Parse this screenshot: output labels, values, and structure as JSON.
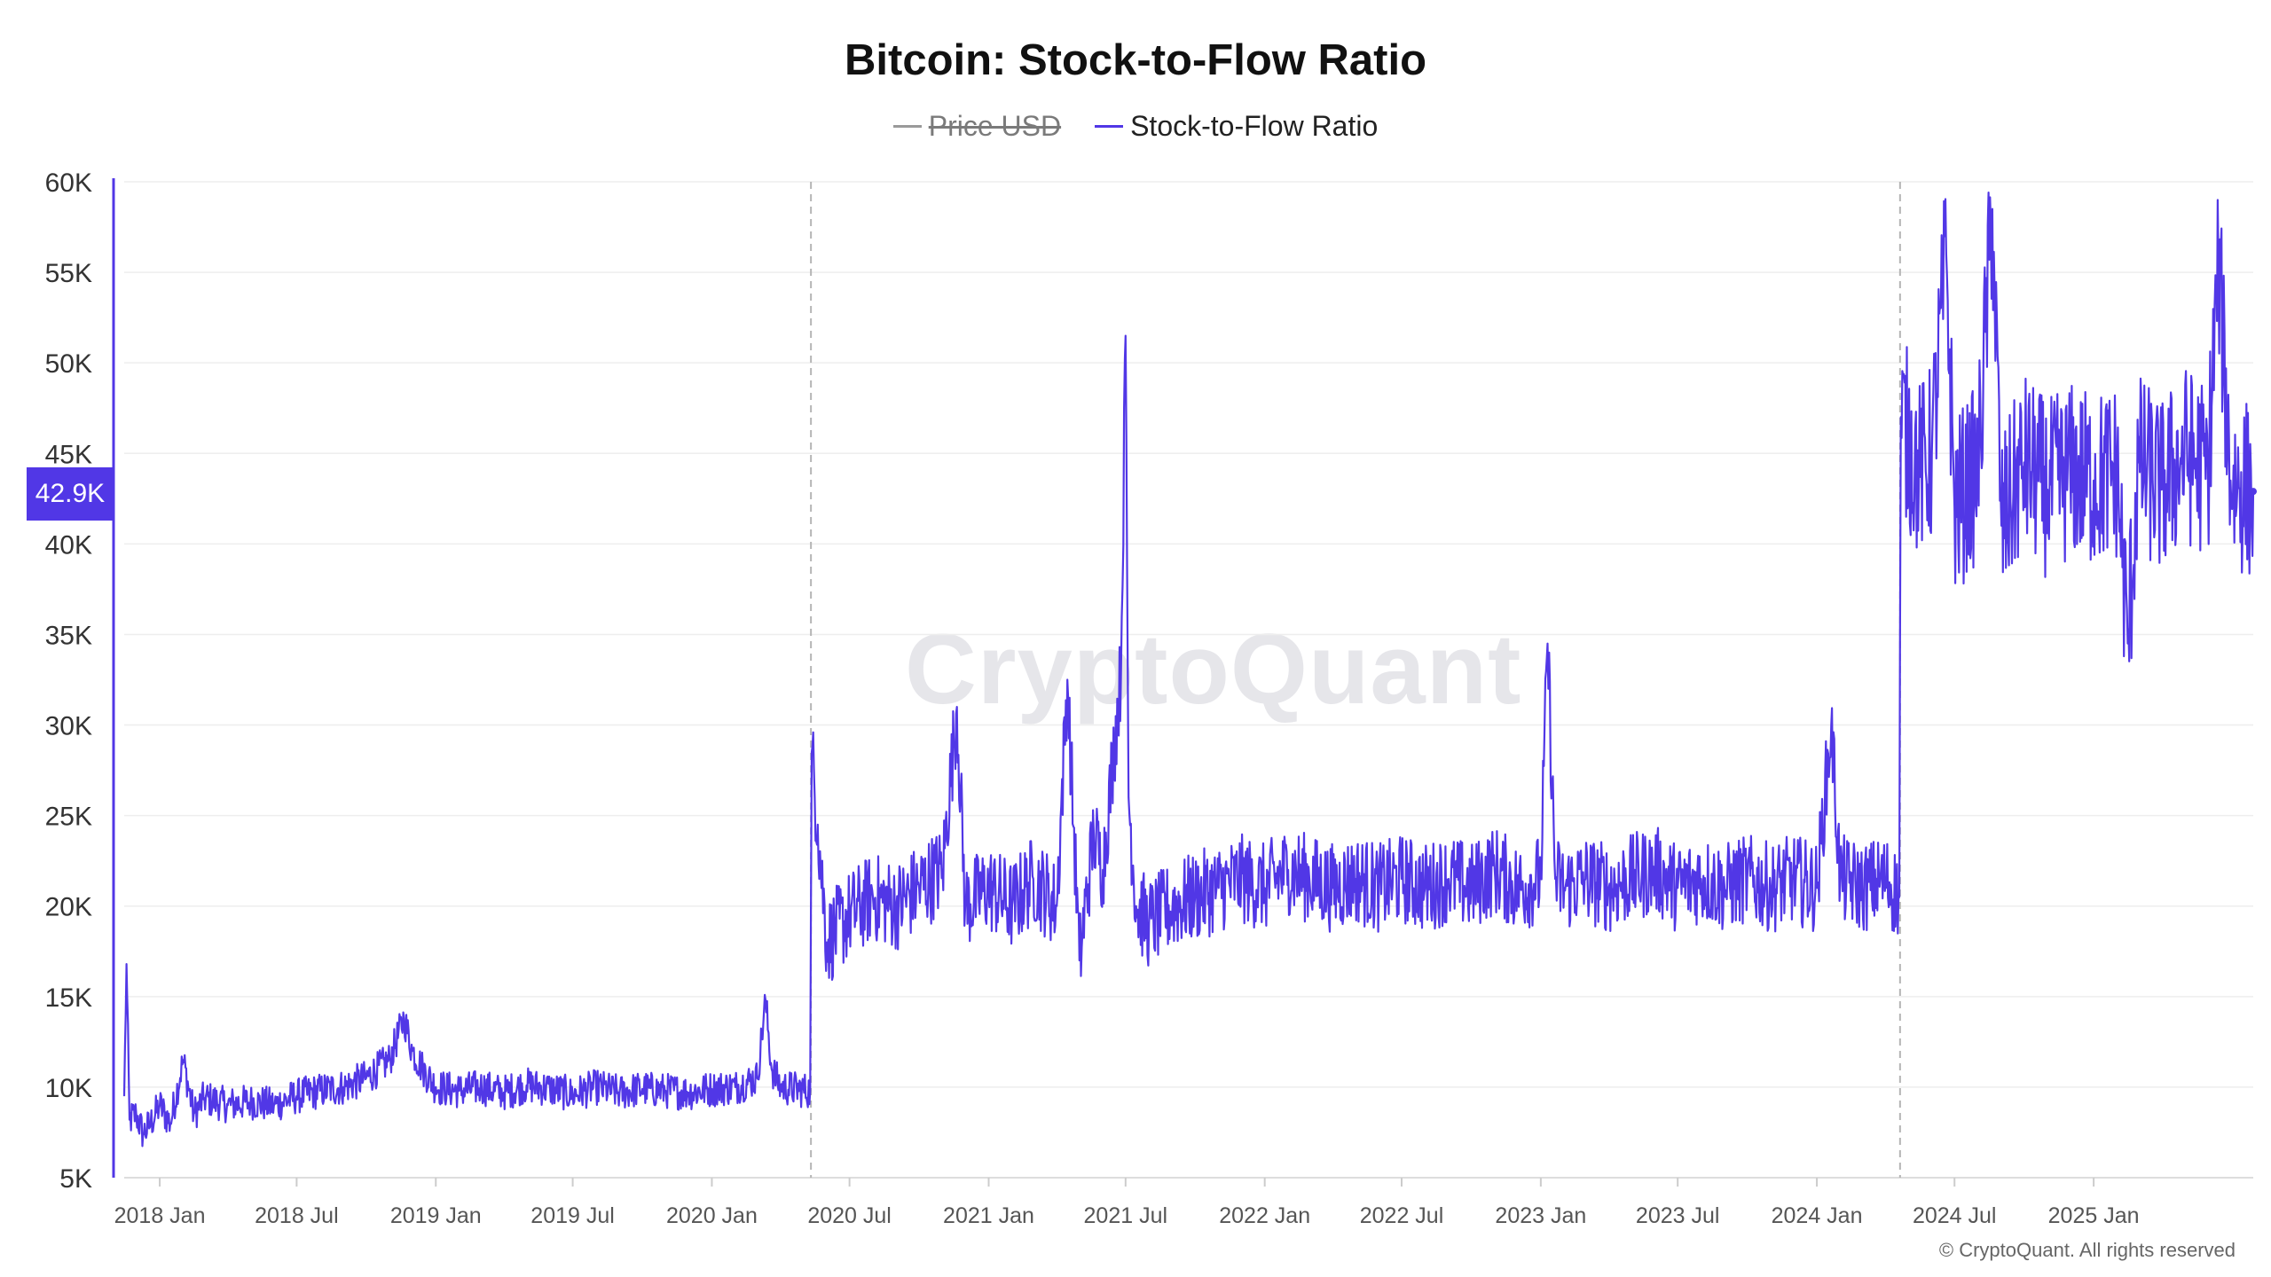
{
  "chart_data": {
    "type": "line",
    "title": "Bitcoin: Stock-to-Flow Ratio",
    "legend": [
      {
        "name": "Price USD",
        "color": "#9a9a9a",
        "enabled": false
      },
      {
        "name": "Stock-to-Flow Ratio",
        "color": "#5137e6",
        "enabled": true
      }
    ],
    "legend_placement": "top-center",
    "ylim": [
      5000,
      60000
    ],
    "y_ticks": [
      5000,
      10000,
      15000,
      20000,
      25000,
      30000,
      35000,
      40000,
      45000,
      50000,
      55000,
      60000
    ],
    "y_tick_labels": [
      "5K",
      "10K",
      "15K",
      "20K",
      "25K",
      "30K",
      "35K",
      "40K",
      "45K",
      "50K",
      "55K",
      "60K"
    ],
    "xlim": [
      "2017-11-15",
      "2025-07-31"
    ],
    "x_tick_labels": [
      "2018 Jan",
      "2018 Jul",
      "2019 Jan",
      "2019 Jul",
      "2020 Jan",
      "2020 Jul",
      "2021 Jan",
      "2021 Jul",
      "2022 Jan",
      "2022 Jul",
      "2023 Jan",
      "2023 Jul",
      "2024 Jan",
      "2024 Jul",
      "2025 Jan"
    ],
    "x_tick_dates": [
      "2018-01-01",
      "2018-07-01",
      "2019-01-01",
      "2019-07-01",
      "2020-01-01",
      "2020-07-01",
      "2021-01-01",
      "2021-07-01",
      "2022-01-01",
      "2022-07-01",
      "2023-01-01",
      "2023-07-01",
      "2024-01-01",
      "2024-07-01",
      "2025-01-01"
    ],
    "halving_lines": [
      "2020-05-11",
      "2024-04-20"
    ],
    "grid": true,
    "current_value_label": "42.9K",
    "series": [
      {
        "name": "Stock-to-Flow Ratio",
        "color": "#5137e6",
        "points": [
          [
            "2017-11-15",
            9500
          ],
          [
            "2017-11-18",
            16800
          ],
          [
            "2017-11-22",
            8200
          ],
          [
            "2017-12-01",
            8500
          ],
          [
            "2017-12-10",
            7400
          ],
          [
            "2017-12-20",
            8000
          ],
          [
            "2018-01-01",
            9000
          ],
          [
            "2018-01-15",
            8000
          ],
          [
            "2018-02-01",
            11500
          ],
          [
            "2018-02-15",
            8500
          ],
          [
            "2018-03-01",
            9400
          ],
          [
            "2018-04-01",
            9000
          ],
          [
            "2018-05-01",
            9200
          ],
          [
            "2018-06-01",
            9000
          ],
          [
            "2018-07-01",
            9500
          ],
          [
            "2018-08-01",
            9800
          ],
          [
            "2018-09-01",
            10000
          ],
          [
            "2018-10-01",
            10500
          ],
          [
            "2018-11-01",
            11500
          ],
          [
            "2018-11-20",
            13800
          ],
          [
            "2018-12-01",
            12000
          ],
          [
            "2018-12-15",
            11000
          ],
          [
            "2019-01-01",
            10000
          ],
          [
            "2019-02-01",
            9800
          ],
          [
            "2019-03-01",
            10000
          ],
          [
            "2019-04-01",
            9700
          ],
          [
            "2019-05-01",
            10100
          ],
          [
            "2019-06-01",
            9900
          ],
          [
            "2019-07-01",
            9600
          ],
          [
            "2019-08-01",
            10000
          ],
          [
            "2019-09-01",
            9700
          ],
          [
            "2019-10-01",
            9900
          ],
          [
            "2019-11-01",
            9800
          ],
          [
            "2019-12-01",
            9700
          ],
          [
            "2020-01-01",
            9900
          ],
          [
            "2020-02-01",
            10000
          ],
          [
            "2020-03-01",
            10500
          ],
          [
            "2020-03-12",
            14800
          ],
          [
            "2020-03-20",
            11000
          ],
          [
            "2020-04-01",
            10000
          ],
          [
            "2020-05-10",
            9800
          ],
          [
            "2020-05-12",
            28500
          ],
          [
            "2020-05-20",
            24500
          ],
          [
            "2020-06-01",
            18000
          ],
          [
            "2020-07-01",
            19500
          ],
          [
            "2020-08-01",
            20500
          ],
          [
            "2020-09-01",
            20000
          ],
          [
            "2020-10-01",
            21000
          ],
          [
            "2020-11-01",
            22000
          ],
          [
            "2020-11-20",
            31000
          ],
          [
            "2020-12-01",
            20000
          ],
          [
            "2021-01-01",
            21000
          ],
          [
            "2021-02-01",
            20000
          ],
          [
            "2021-03-01",
            21500
          ],
          [
            "2021-04-01",
            20000
          ],
          [
            "2021-04-15",
            32500
          ],
          [
            "2021-05-01",
            17000
          ],
          [
            "2021-05-20",
            24000
          ],
          [
            "2021-06-01",
            22000
          ],
          [
            "2021-06-25",
            33000
          ],
          [
            "2021-07-01",
            51500
          ],
          [
            "2021-07-05",
            26000
          ],
          [
            "2021-07-15",
            20000
          ],
          [
            "2021-08-01",
            19000
          ],
          [
            "2021-09-01",
            20000
          ],
          [
            "2021-10-01",
            20500
          ],
          [
            "2021-11-01",
            21000
          ],
          [
            "2021-12-01",
            21500
          ],
          [
            "2022-01-01",
            21000
          ],
          [
            "2022-02-01",
            22000
          ],
          [
            "2022-03-01",
            21500
          ],
          [
            "2022-04-01",
            21000
          ],
          [
            "2022-05-01",
            21500
          ],
          [
            "2022-06-01",
            21000
          ],
          [
            "2022-07-01",
            21500
          ],
          [
            "2022-08-01",
            21000
          ],
          [
            "2022-09-01",
            21500
          ],
          [
            "2022-10-01",
            21000
          ],
          [
            "2022-11-01",
            22000
          ],
          [
            "2022-12-01",
            21000
          ],
          [
            "2023-01-01",
            21500
          ],
          [
            "2023-01-10",
            34500
          ],
          [
            "2023-01-20",
            21500
          ],
          [
            "2023-02-01",
            21000
          ],
          [
            "2023-03-01",
            21500
          ],
          [
            "2023-04-01",
            21000
          ],
          [
            "2023-05-01",
            21500
          ],
          [
            "2023-06-01",
            22000
          ],
          [
            "2023-07-01",
            21000
          ],
          [
            "2023-08-01",
            21500
          ],
          [
            "2023-09-01",
            21000
          ],
          [
            "2023-10-01",
            21500
          ],
          [
            "2023-11-01",
            21000
          ],
          [
            "2023-12-01",
            21500
          ],
          [
            "2024-01-01",
            21000
          ],
          [
            "2024-01-20",
            30000
          ],
          [
            "2024-02-01",
            21500
          ],
          [
            "2024-03-01",
            21000
          ],
          [
            "2024-04-01",
            21500
          ],
          [
            "2024-04-19",
            20500
          ],
          [
            "2024-04-21",
            47000
          ],
          [
            "2024-05-15",
            44000
          ],
          [
            "2024-06-01",
            45000
          ],
          [
            "2024-06-20",
            56000
          ],
          [
            "2024-07-01",
            42000
          ],
          [
            "2024-08-01",
            44000
          ],
          [
            "2024-08-20",
            58500
          ],
          [
            "2024-09-01",
            41000
          ],
          [
            "2024-10-01",
            44500
          ],
          [
            "2024-11-01",
            43000
          ],
          [
            "2024-12-01",
            44000
          ],
          [
            "2025-01-01",
            43500
          ],
          [
            "2025-02-01",
            44000
          ],
          [
            "2025-02-15",
            34500
          ],
          [
            "2025-03-01",
            44500
          ],
          [
            "2025-04-01",
            43000
          ],
          [
            "2025-05-01",
            45000
          ],
          [
            "2025-06-01",
            44000
          ],
          [
            "2025-06-15",
            55500
          ],
          [
            "2025-07-01",
            43500
          ],
          [
            "2025-07-31",
            42900
          ]
        ],
        "noise_amplitude_by_period": [
          {
            "from": "2017-11-15",
            "to": "2020-05-11",
            "amplitude": 2000
          },
          {
            "from": "2020-05-11",
            "to": "2024-04-20",
            "amplitude": 5000
          },
          {
            "from": "2024-04-20",
            "to": "2025-07-31",
            "amplitude": 10000
          }
        ]
      }
    ]
  },
  "watermark": "CryptoQuant",
  "copyright": "© CryptoQuant. All rights reserved"
}
